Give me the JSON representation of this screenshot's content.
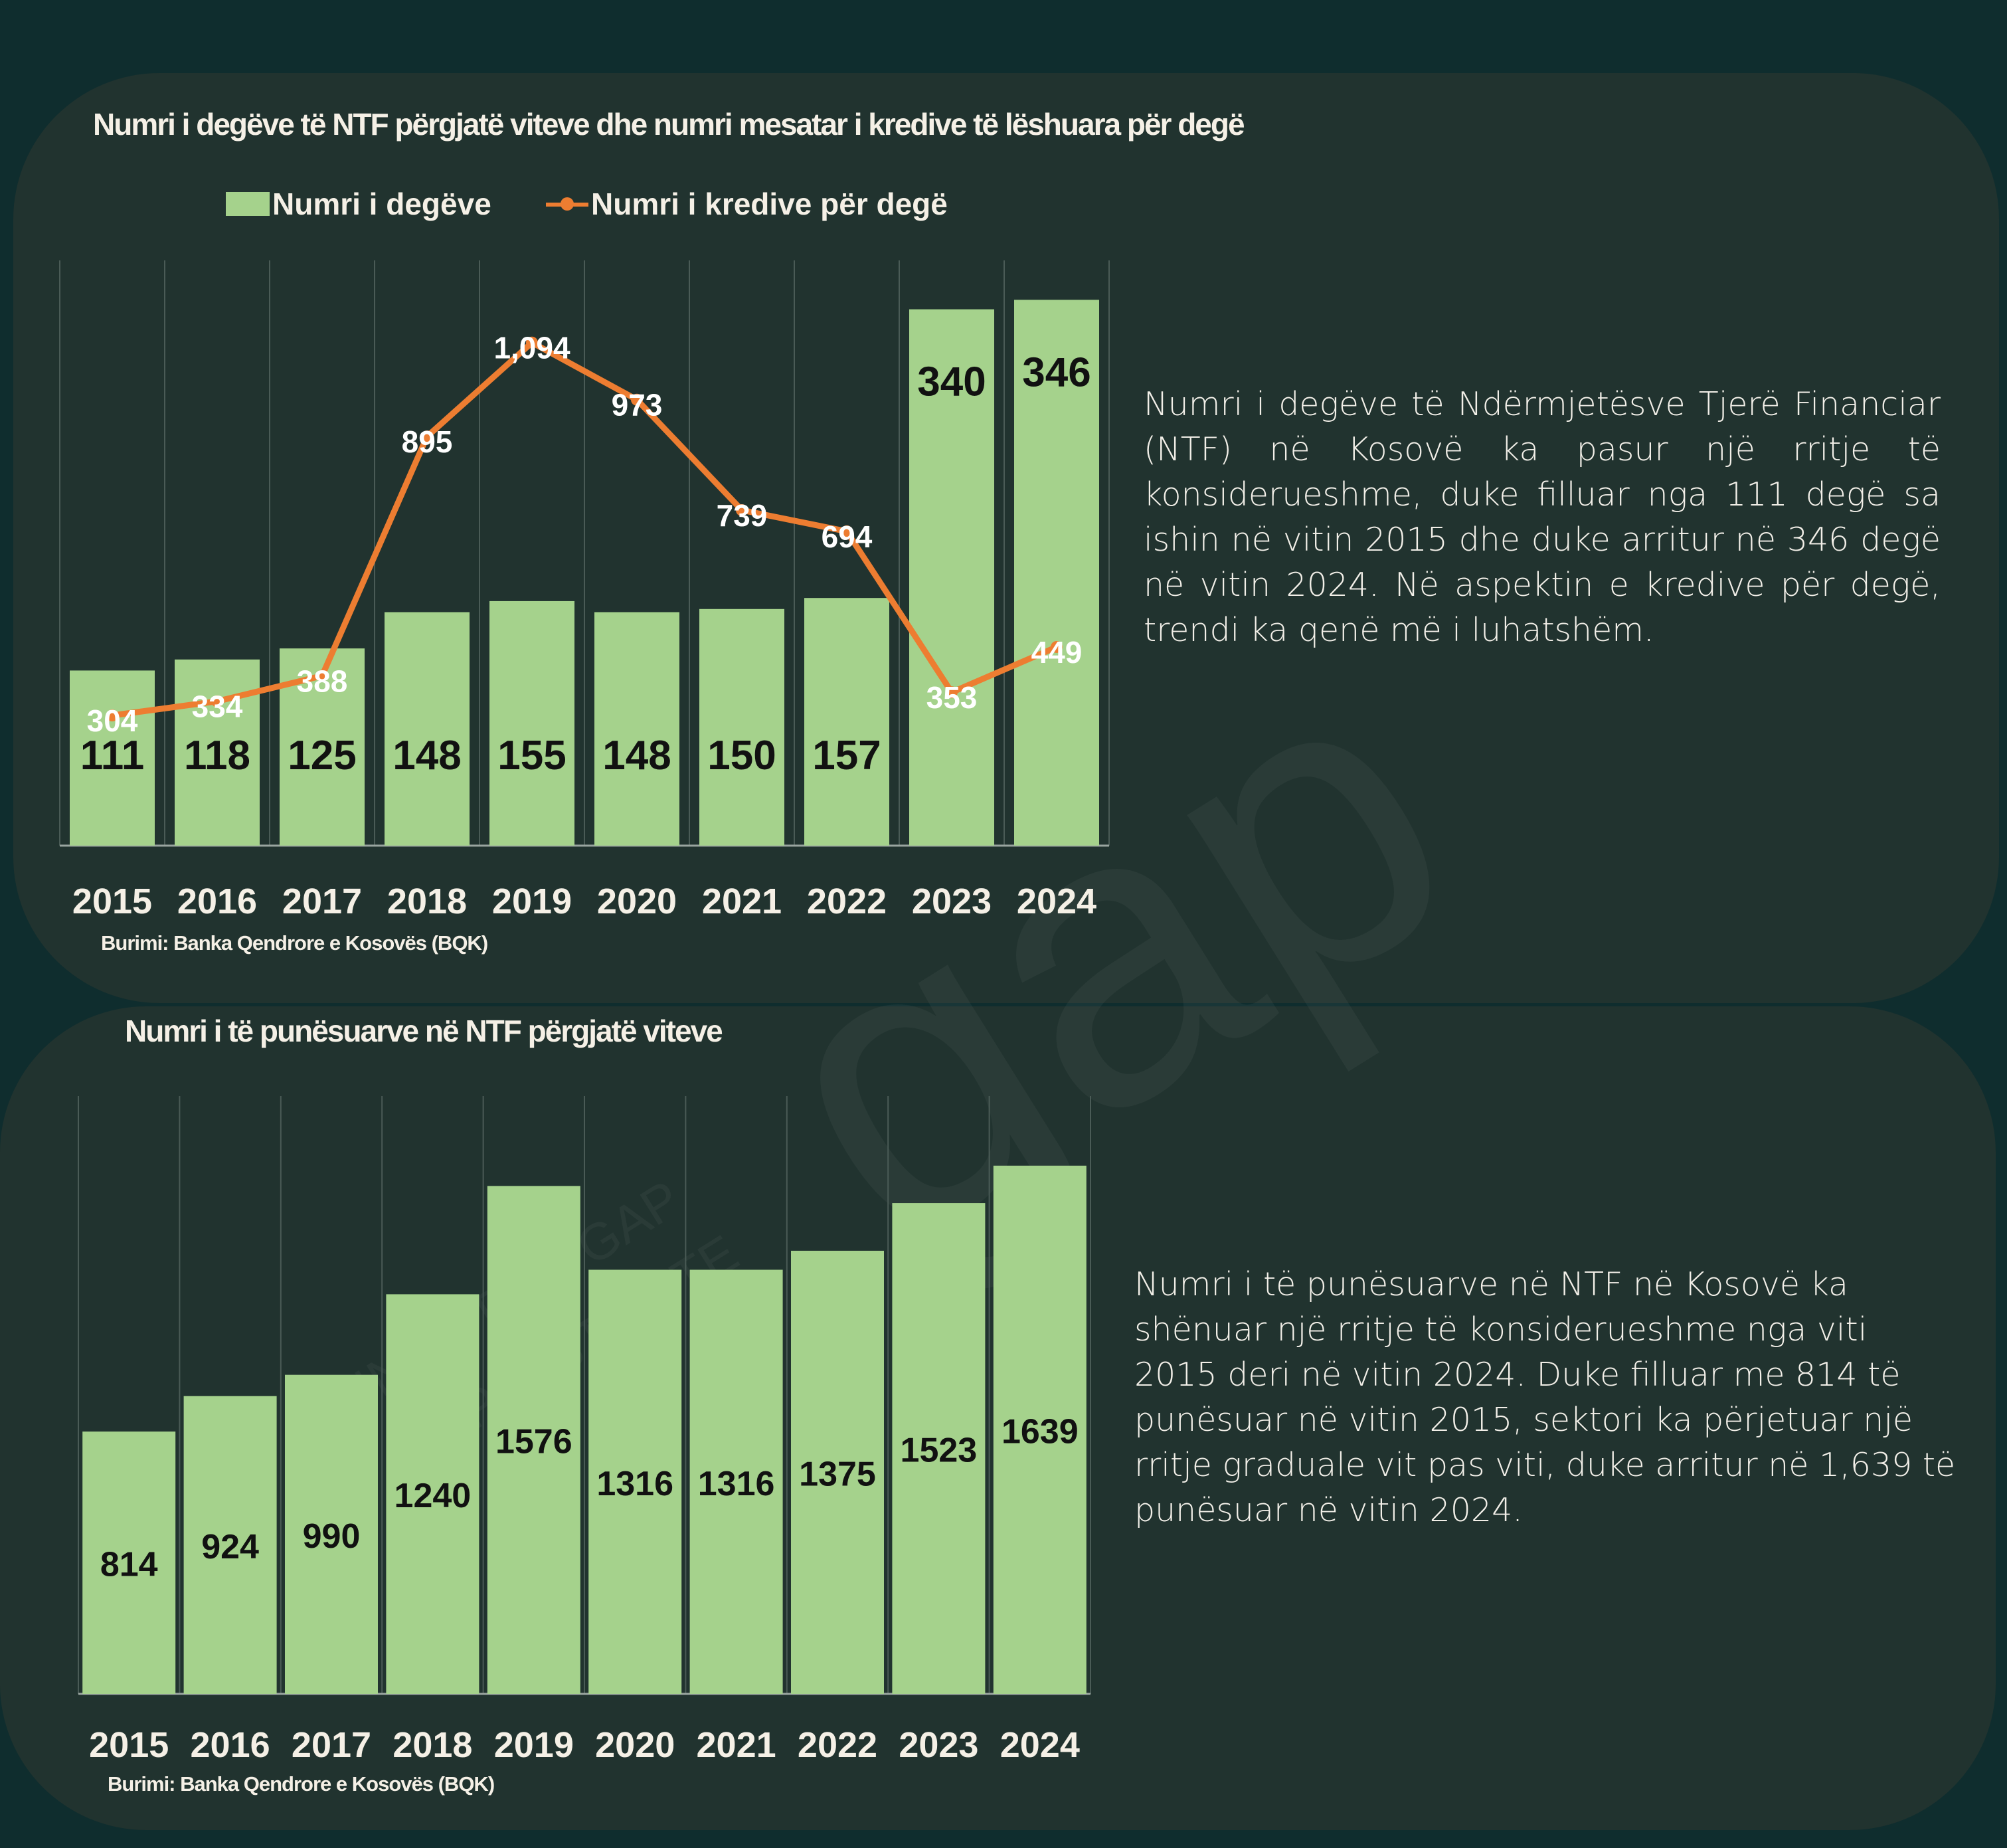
{
  "watermark": {
    "logo": "gap",
    "line1": "INSTITUTI GAP",
    "line2": "GAP INSTITUTE"
  },
  "colors": {
    "background": "#0f2d2e",
    "panel": "#21332f",
    "bar": "#a5d28c",
    "line": "#ed7d31",
    "text": "#f5f0e6"
  },
  "top_section": {
    "title": "Numri i degëve të  NTF  përgjatë viteve dhe numri mesatar i kredive të lëshuara për degë",
    "legend": [
      "Numri i degëve",
      "Numri i kredive për degë"
    ],
    "source": "Burimi: Banka Qendrore e Kosovës (BQK)",
    "description": "Numri i degëve të Ndërmjetësve Tjerë Financiar (NTF) në Kosovë ka pasur një rritje të konsiderueshme, duke filluar nga 111 degë sa ishin në vitin 2015 dhe duke arritur në 346 degë në vitin 2024. Në aspektin e kredive për degë, trendi ka qenë më i luhatshëm."
  },
  "bottom_section": {
    "title": "Numri i  të punësuarve në NTF përgjatë viteve",
    "source": "Burimi: Banka Qendrore e Kosovës (BQK)",
    "description": "Numri i të punësuarve në NTF në Kosovë ka shënuar një rritje të konsiderueshme nga viti 2015 deri në vitin 2024. Duke filluar me 814 të punësuar në vitin 2015, sektori ka përjetuar një rritje graduale vit pas viti, duke arritur në 1,639 të punësuar në vitin 2024."
  },
  "chart_data": [
    {
      "type": "bar",
      "title": "Numri i degëve të  NTF  përgjatë viteve dhe numri mesatar i kredive të lëshuara për degë",
      "categories": [
        "2015",
        "2016",
        "2017",
        "2018",
        "2019",
        "2020",
        "2021",
        "2022",
        "2023",
        "2024"
      ],
      "series": [
        {
          "name": "Numri i degëve",
          "type": "bar",
          "values": [
            111,
            118,
            125,
            148,
            155,
            148,
            150,
            157,
            340,
            346
          ],
          "labels": [
            "111",
            "118",
            "125",
            "148",
            "155",
            "148",
            "150",
            "157",
            "340",
            "346"
          ]
        },
        {
          "name": "Numri i kredive për degë",
          "type": "line",
          "values": [
            304,
            334,
            388,
            895,
            1094,
            973,
            739,
            694,
            353,
            449
          ],
          "labels": [
            "304",
            "334",
            "388",
            "895",
            "1,094",
            "973",
            "739",
            "694",
            "353",
            "449"
          ]
        }
      ],
      "legend_position": "top",
      "grid": "vertical"
    },
    {
      "type": "bar",
      "title": "Numri i  të punësuarve në NTF përgjatë viteve",
      "categories": [
        "2015",
        "2016",
        "2017",
        "2018",
        "2019",
        "2020",
        "2021",
        "2022",
        "2023",
        "2024"
      ],
      "series": [
        {
          "values": [
            814,
            924,
            990,
            1240,
            1576,
            1316,
            1316,
            1375,
            1523,
            1639
          ],
          "labels": [
            "814",
            "924",
            "990",
            "1240",
            "1576",
            "1316",
            "1316",
            "1375",
            "1523",
            "1639"
          ]
        }
      ],
      "grid": "vertical"
    }
  ]
}
